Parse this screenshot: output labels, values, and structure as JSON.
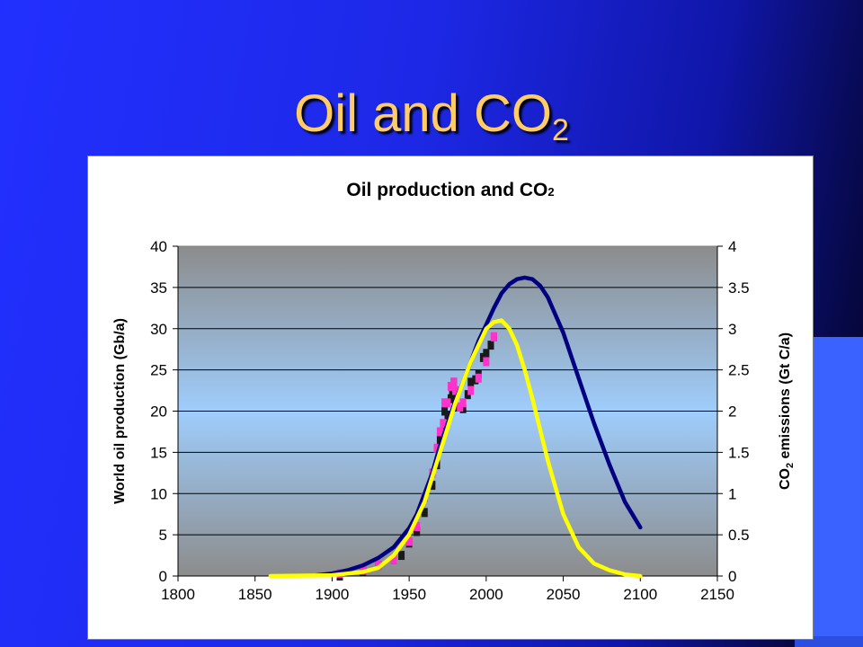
{
  "slide": {
    "title_main": "Oil and CO",
    "title_sub": "2"
  },
  "colors": {
    "plot_top": "#8c8c8c",
    "plot_mid": "#9fcdfc",
    "plot_bottom": "#8c8c8c",
    "oil_fit": "#000080",
    "co2_fit": "#ffff00",
    "oil_observed": "#1a1a1a",
    "co2_observed": "#ff33cc"
  },
  "chart_data": {
    "type": "line",
    "title": "Oil production and CO",
    "title_sub": "2",
    "ylabel": "World oil production (Gb/a)",
    "y2label_pre": "CO",
    "y2label_sub": "2",
    "y2label_post": " emissions (Gt C/a)",
    "xlim": [
      1800,
      2150
    ],
    "ylim": [
      0,
      40
    ],
    "y2lim": [
      0,
      4
    ],
    "x_ticks": [
      "1800",
      "1850",
      "1900",
      "1950",
      "2000",
      "2050",
      "2100",
      "2150"
    ],
    "y_ticks": [
      "0",
      "5",
      "10",
      "15",
      "20",
      "25",
      "30",
      "35",
      "40"
    ],
    "y2_ticks": [
      "0",
      "0.5",
      "1",
      "1.5",
      "2",
      "2.5",
      "3",
      "3.5",
      "4"
    ],
    "grid": true,
    "legend": "none",
    "series": [
      {
        "axis": "left",
        "style": "line",
        "color": "#000080",
        "x": [
          1890,
          1900,
          1910,
          1920,
          1930,
          1940,
          1950,
          1955,
          1960,
          1965,
          1970,
          1975,
          1980,
          1985,
          1990,
          1995,
          2000,
          2005,
          2010,
          2015,
          2020,
          2025,
          2030,
          2035,
          2040,
          2050,
          2060,
          2070,
          2080,
          2090,
          2100
        ],
        "y": [
          0.1,
          0.3,
          0.7,
          1.3,
          2.2,
          3.5,
          5.8,
          7.5,
          10.0,
          12.5,
          15.8,
          18.5,
          21.3,
          23.5,
          26.0,
          28.5,
          30.5,
          32.5,
          34.3,
          35.4,
          36.0,
          36.2,
          36.0,
          35.2,
          33.8,
          29.5,
          24.0,
          18.5,
          13.5,
          9.0,
          5.9
        ]
      },
      {
        "axis": "right",
        "style": "line",
        "color": "#ffff00",
        "x": [
          1860,
          1900,
          1920,
          1930,
          1940,
          1950,
          1960,
          1970,
          1975,
          1980,
          1990,
          2000,
          2005,
          2010,
          2015,
          2020,
          2025,
          2030,
          2040,
          2050,
          2060,
          2070,
          2080,
          2090,
          2100
        ],
        "y": [
          0.0,
          0.01,
          0.05,
          0.1,
          0.25,
          0.5,
          0.9,
          1.5,
          1.8,
          2.1,
          2.6,
          3.0,
          3.08,
          3.1,
          3.0,
          2.8,
          2.5,
          2.15,
          1.4,
          0.75,
          0.35,
          0.15,
          0.07,
          0.02,
          0.0
        ]
      },
      {
        "axis": "left",
        "style": "markers",
        "color": "#1a1a1a",
        "x": [
          1905,
          1920,
          1930,
          1940,
          1945,
          1950,
          1955,
          1960,
          1965,
          1968,
          1970,
          1972,
          1973,
          1975,
          1977,
          1978,
          1979,
          1980,
          1982,
          1985,
          1988,
          1990,
          1993,
          1995,
          1998,
          2000,
          2003,
          2005
        ],
        "y": [
          0.0,
          0.6,
          1.3,
          2.0,
          2.5,
          4.0,
          5.4,
          7.7,
          11.0,
          13.5,
          16.5,
          17.5,
          20.0,
          19.5,
          21.5,
          22.5,
          23.5,
          22.0,
          20.5,
          20.3,
          22.0,
          23.5,
          23.8,
          24.5,
          26.5,
          27.0,
          28.0,
          29.0
        ]
      },
      {
        "axis": "right",
        "style": "markers",
        "color": "#ff33cc",
        "x": [
          1905,
          1920,
          1930,
          1940,
          1950,
          1955,
          1960,
          1965,
          1968,
          1970,
          1972,
          1973,
          1975,
          1977,
          1979,
          1980,
          1983,
          1985,
          1990,
          1995,
          2000,
          2005
        ],
        "y": [
          0.03,
          0.07,
          0.13,
          0.2,
          0.42,
          0.6,
          0.95,
          1.25,
          1.55,
          1.75,
          1.85,
          2.1,
          2.1,
          2.3,
          2.35,
          2.25,
          2.05,
          2.1,
          2.25,
          2.4,
          2.6,
          2.9
        ]
      }
    ]
  }
}
